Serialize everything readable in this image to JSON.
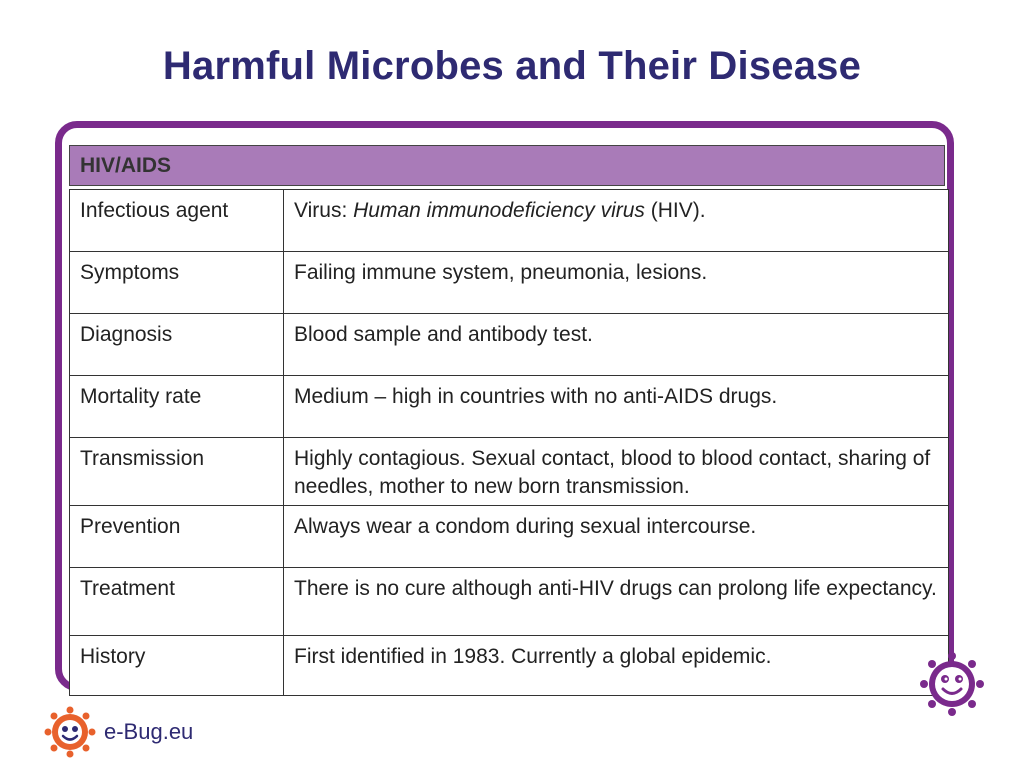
{
  "page": {
    "title": "Harmful Microbes and Their Disease"
  },
  "table": {
    "heading": "HIV/AIDS",
    "rows": [
      {
        "label": "Infectious agent",
        "value_prefix": "Virus: ",
        "value_italic": "Human immunodeficiency virus",
        "value_suffix": " (HIV)."
      },
      {
        "label": "Symptoms",
        "value": "Failing immune system, pneumonia, lesions."
      },
      {
        "label": "Diagnosis",
        "value": "Blood sample and antibody test."
      },
      {
        "label": "Mortality rate",
        "value": "Medium – high in countries with no anti-AIDS drugs."
      },
      {
        "label": "Transmission",
        "value": "Highly contagious. Sexual contact, blood to blood contact, sharing of needles, mother to new born transmission."
      },
      {
        "label": "Prevention",
        "value": "Always wear a condom during sexual intercourse."
      },
      {
        "label": "Treatment",
        "value": "There is no cure although anti-HIV drugs can prolong life expectancy."
      },
      {
        "label": "History",
        "value": "First identified in 1983. Currently a global epidemic."
      }
    ]
  },
  "footer": {
    "brand": "e-Bug.eu"
  },
  "colors": {
    "title": "#2e2a72",
    "frame": "#7a2a8c",
    "header_fill": "#a97bb8",
    "logo_orange": "#e8612c"
  }
}
